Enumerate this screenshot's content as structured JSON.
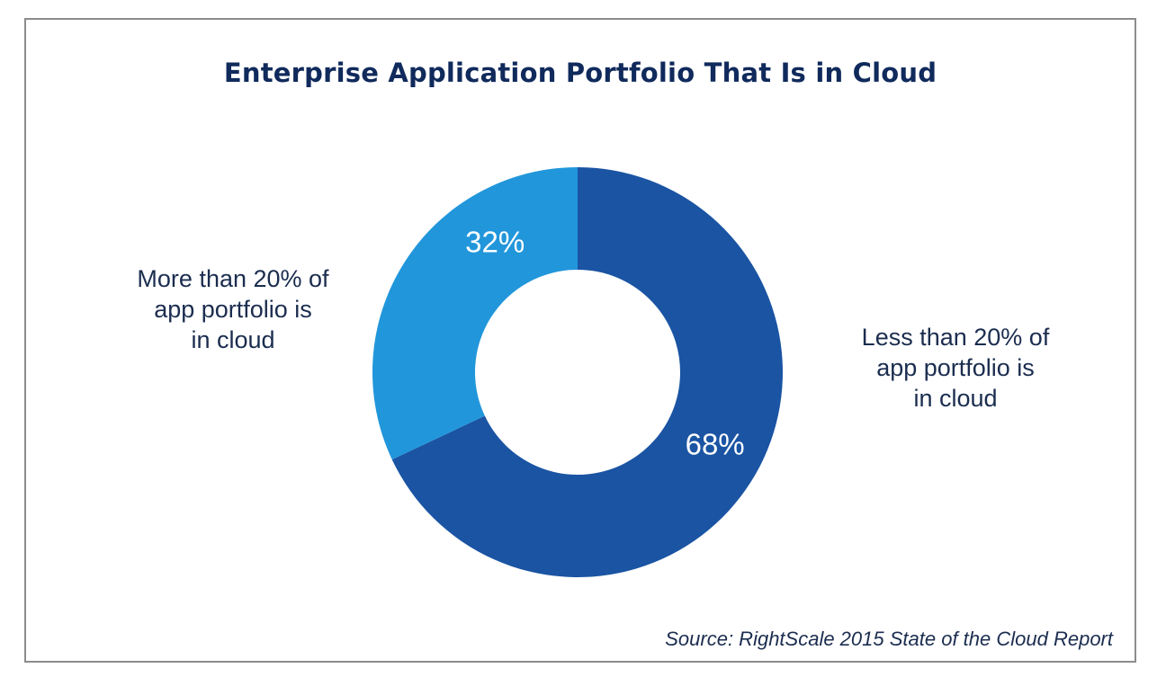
{
  "chart_data": {
    "type": "pie",
    "variant": "donut",
    "title": "Enterprise Application Portfolio That Is in Cloud",
    "slices": [
      {
        "name": "Less than 20% of app portfolio is in cloud",
        "label": "Less than 20% of\napp portfolio is\nin cloud",
        "value": 68,
        "value_label": "68%",
        "color": "#1a54a3"
      },
      {
        "name": "More than 20% of app portfolio is in cloud",
        "label": "More than 20% of\napp portfolio is\nin cloud",
        "value": 32,
        "value_label": "32%",
        "color": "#2196db"
      }
    ],
    "source": "Source: RightScale 2015 State of the Cloud Report"
  }
}
